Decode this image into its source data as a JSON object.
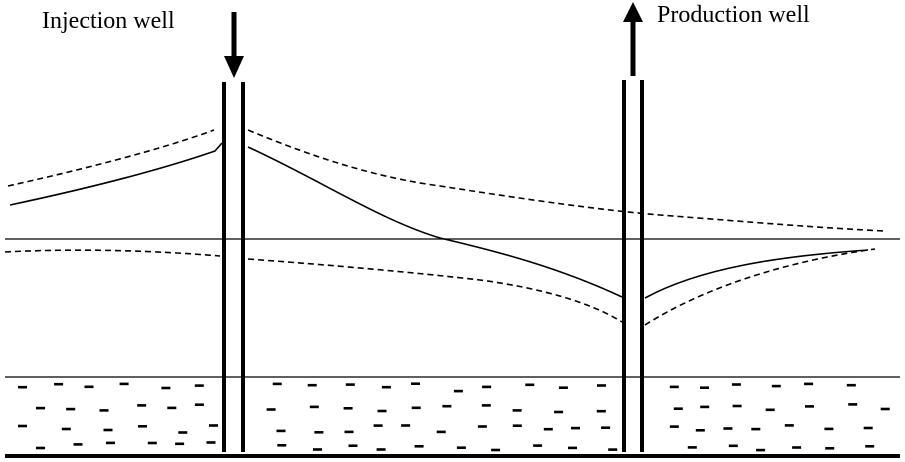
{
  "labels": {
    "injection_well": "Injection well",
    "production_well": "Production well"
  },
  "colors": {
    "ink": "#000000",
    "background": "#ffffff"
  }
}
